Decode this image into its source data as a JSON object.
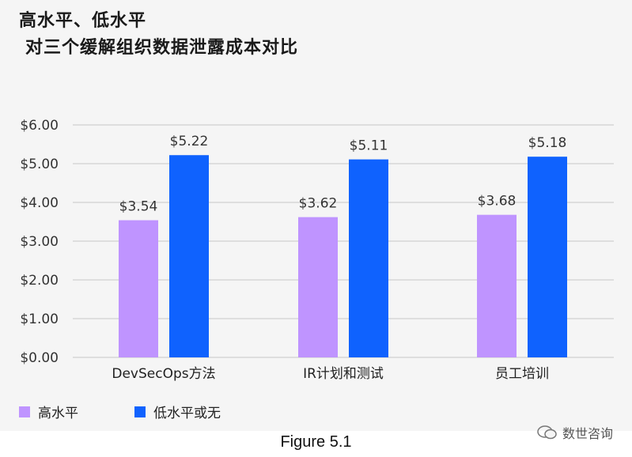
{
  "title_line1": "高水平、低水平",
  "title_line2": "对三个缓解组织数据泄露成本对比",
  "caption": "Figure 5.1",
  "watermark": "数世咨询",
  "colors": {
    "high": "#bf94ff",
    "low": "#0f62fe",
    "grid": "#c8c8c8"
  },
  "chart_data": {
    "type": "bar",
    "categories": [
      "DevSecOps方法",
      "IR计划和测试",
      "员工培训"
    ],
    "series": [
      {
        "name": "高水平",
        "values": [
          3.54,
          3.62,
          3.68
        ],
        "labels": [
          "$3.54",
          "$3.62",
          "$3.68"
        ]
      },
      {
        "name": "低水平或无",
        "values": [
          5.22,
          5.11,
          5.18
        ],
        "labels": [
          "$5.22",
          "$5.11",
          "$5.18"
        ]
      }
    ],
    "ylim": [
      0,
      6
    ],
    "yticks": [
      "$0.00",
      "$1.00",
      "$2.00",
      "$3.00",
      "$4.00",
      "$5.00",
      "$6.00"
    ],
    "grid": true,
    "legend": "bottom-left"
  }
}
